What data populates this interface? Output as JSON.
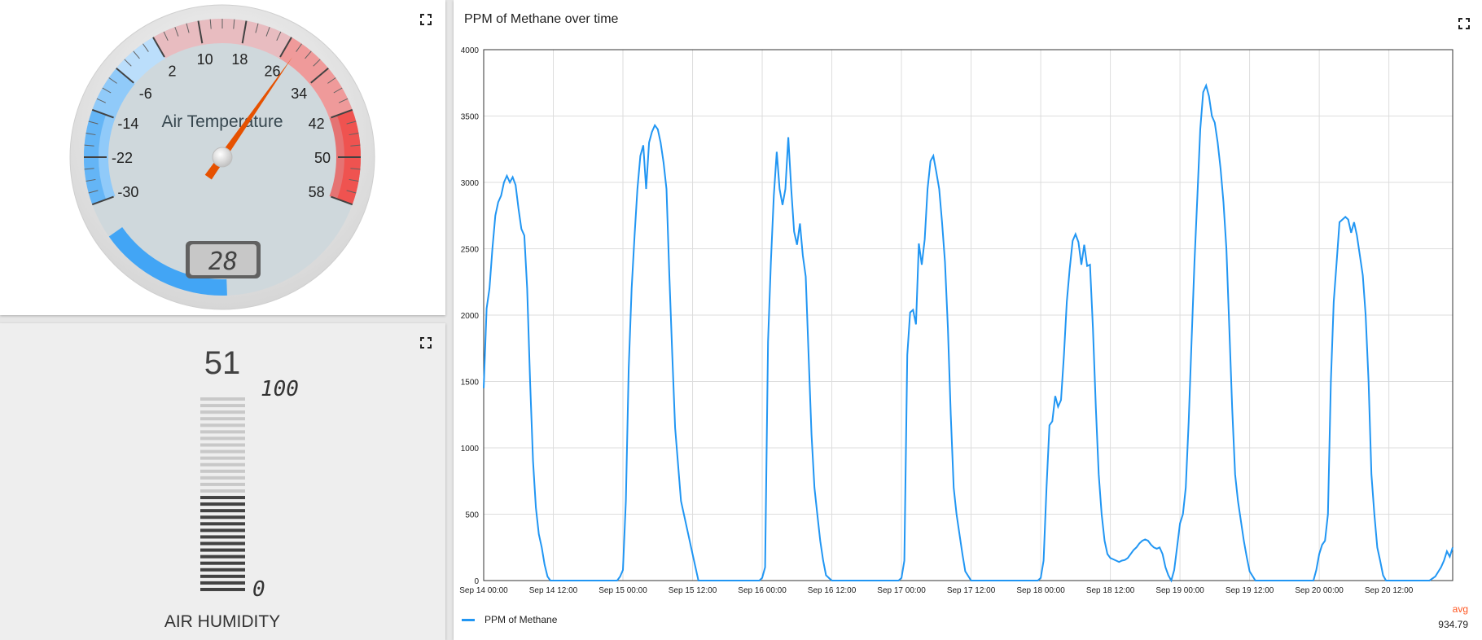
{
  "gauge": {
    "title": "Air Temperature",
    "value": 28,
    "value_display": "28",
    "min": -30,
    "max": 58,
    "ticks": [
      "-30",
      "-22",
      "-14",
      "-6",
      "2",
      "10",
      "18",
      "26",
      "34",
      "42",
      "50",
      "58"
    ],
    "colors": {
      "cold": "#2196f3",
      "hot": "#e53935",
      "needle": "#e65100",
      "face": "#cfd8dc"
    }
  },
  "humidity": {
    "title": "AIR HUMIDITY",
    "value": 51,
    "value_display": "51",
    "max_label": "100",
    "min_label": "0",
    "min": 0,
    "max": 100
  },
  "chart": {
    "title": "PPM of Methane over time",
    "legend": "PPM of Methane",
    "avg_label": "avg",
    "avg_value": "934.79"
  },
  "chart_data": {
    "type": "line",
    "ylim": [
      0,
      4000
    ],
    "yticks": [
      "0",
      "500",
      "1000",
      "1500",
      "2000",
      "2500",
      "3000",
      "3500",
      "4000"
    ],
    "xticks": [
      "Sep 14 00:00",
      "Sep 14 12:00",
      "Sep 15 00:00",
      "Sep 15 12:00",
      "Sep 16 00:00",
      "Sep 16 12:00",
      "Sep 17 00:00",
      "Sep 17 12:00",
      "Sep 18 00:00",
      "Sep 18 12:00",
      "Sep 19 00:00",
      "Sep 19 12:00",
      "Sep 20 00:00",
      "Sep 20 12:00"
    ],
    "xrange_hours": [
      0,
      167
    ],
    "grid": true,
    "legend_position": "bottom-left",
    "series": [
      {
        "name": "PPM of Methane",
        "color": "#2196f3",
        "x_hours": [
          0,
          0.5,
          1,
          1.5,
          2,
          2.5,
          3,
          3.5,
          4,
          4.5,
          5,
          5.5,
          6,
          6.5,
          7,
          7.5,
          8,
          8.5,
          9,
          9.5,
          10,
          10.5,
          11,
          11.5,
          12,
          13,
          14,
          15,
          16,
          17,
          18,
          19,
          20,
          21,
          22,
          23,
          23.5,
          24,
          24.5,
          25,
          25.5,
          26,
          26.5,
          27,
          27.5,
          28,
          28.5,
          29,
          29.5,
          30,
          30.5,
          31,
          31.5,
          32,
          32.5,
          33,
          34,
          35,
          36,
          37,
          38,
          39,
          40,
          41,
          42,
          43,
          44,
          45,
          46,
          47,
          47.5,
          48,
          48.5,
          49,
          49.5,
          50,
          50.5,
          51,
          51.5,
          52,
          52.5,
          53,
          53.5,
          54,
          54.5,
          55,
          55.5,
          56,
          56.5,
          57,
          57.5,
          58,
          58.5,
          59,
          60,
          61,
          62,
          63,
          64,
          65,
          66,
          67,
          68,
          69,
          70,
          71,
          71.5,
          72,
          72.5,
          73,
          73.5,
          74,
          74.5,
          75,
          75.5,
          76,
          76.5,
          77,
          77.5,
          78,
          78.5,
          79,
          79.5,
          80,
          80.5,
          81,
          81.5,
          82,
          82.5,
          83,
          84,
          85,
          86,
          87,
          88,
          89,
          90,
          91,
          92,
          93,
          94,
          95,
          95.5,
          96,
          96.5,
          97,
          97.5,
          98,
          98.5,
          99,
          99.5,
          100,
          100.5,
          101,
          101.5,
          102,
          102.5,
          103,
          103.5,
          104,
          104.5,
          105,
          105.5,
          106,
          106.5,
          107,
          107.5,
          108,
          108.5,
          109,
          109.5,
          110,
          110.5,
          111,
          111.5,
          112,
          112.5,
          113,
          113.5,
          114,
          114.5,
          115,
          115.5,
          116,
          116.5,
          117,
          117.5,
          118,
          118.5,
          119,
          119.5,
          120,
          120.5,
          121,
          121.5,
          122,
          122.5,
          123,
          123.5,
          124,
          124.5,
          125,
          125.5,
          126,
          126.5,
          127,
          127.5,
          128,
          128.5,
          129,
          129.5,
          130,
          130.5,
          131,
          131.5,
          132,
          133,
          134,
          135,
          136,
          137,
          138,
          139,
          140,
          141,
          142,
          143,
          143.5,
          144,
          144.5,
          145,
          145.5,
          146,
          146.5,
          147,
          147.5,
          148,
          148.5,
          149,
          149.5,
          150,
          150.5,
          151,
          151.5,
          152,
          152.5,
          153,
          153.5,
          154,
          154.5,
          155,
          155.5,
          156,
          156.5,
          157,
          158,
          159,
          160,
          161,
          162,
          163,
          164,
          165,
          165.5,
          166,
          166.5,
          167
        ],
        "values": [
          1450,
          2050,
          2200,
          2500,
          2750,
          2850,
          2900,
          3000,
          3050,
          3000,
          3040,
          2980,
          2800,
          2650,
          2600,
          2200,
          1500,
          900,
          550,
          350,
          250,
          120,
          30,
          0,
          0,
          0,
          0,
          0,
          0,
          0,
          0,
          0,
          0,
          0,
          0,
          0,
          30,
          80,
          600,
          1600,
          2200,
          2600,
          2950,
          3200,
          3280,
          2950,
          3300,
          3380,
          3430,
          3400,
          3300,
          3150,
          2950,
          2300,
          1700,
          1150,
          600,
          400,
          200,
          0,
          0,
          0,
          0,
          0,
          0,
          0,
          0,
          0,
          0,
          0,
          0,
          20,
          100,
          1800,
          2400,
          2900,
          3230,
          2950,
          2830,
          2950,
          3340,
          2950,
          2630,
          2530,
          2690,
          2450,
          2290,
          1700,
          1100,
          700,
          500,
          300,
          150,
          40,
          0,
          0,
          0,
          0,
          0,
          0,
          0,
          0,
          0,
          0,
          0,
          0,
          0,
          20,
          150,
          1700,
          2020,
          2040,
          1930,
          2540,
          2380,
          2570,
          2950,
          3160,
          3200,
          3080,
          2950,
          2700,
          2400,
          1900,
          1250,
          700,
          500,
          350,
          200,
          70,
          0,
          0,
          0,
          0,
          0,
          0,
          0,
          0,
          0,
          0,
          0,
          0,
          0,
          20,
          150,
          700,
          1170,
          1200,
          1390,
          1310,
          1360,
          1700,
          2100,
          2350,
          2560,
          2610,
          2550,
          2380,
          2530,
          2370,
          2380,
          1900,
          1300,
          800,
          500,
          300,
          200,
          170,
          160,
          150,
          140,
          150,
          155,
          170,
          200,
          230,
          250,
          280,
          300,
          310,
          300,
          270,
          250,
          240,
          250,
          200,
          100,
          40,
          0,
          80,
          250,
          430,
          500,
          700,
          1200,
          1800,
          2400,
          2900,
          3400,
          3680,
          3730,
          3650,
          3500,
          3450,
          3300,
          3100,
          2850,
          2500,
          1900,
          1300,
          800,
          600,
          450,
          300,
          180,
          70,
          0,
          0,
          0,
          0,
          0,
          0,
          0,
          0,
          0,
          0,
          0,
          80,
          200,
          270,
          300,
          500,
          1500,
          2100,
          2400,
          2700,
          2720,
          2740,
          2720,
          2620,
          2700,
          2600,
          2450,
          2300,
          2000,
          1500,
          800,
          500,
          250,
          150,
          40,
          0,
          0,
          0,
          0,
          0,
          0,
          0,
          0,
          0,
          0,
          30,
          100,
          150,
          220,
          180,
          250
        ]
      }
    ]
  }
}
